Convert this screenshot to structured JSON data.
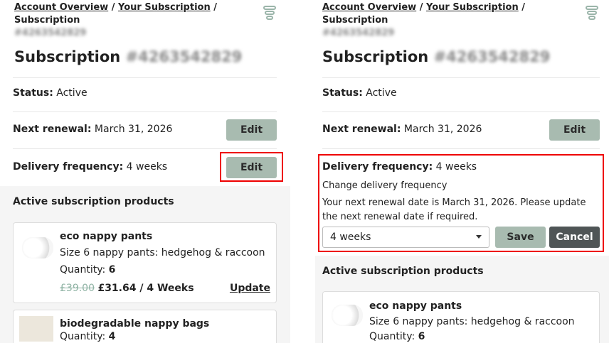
{
  "breadcrumb": {
    "items": [
      "Account Overview",
      "Your Subscription"
    ],
    "current": "Subscription",
    "sub_id": "#4263542829"
  },
  "title": {
    "label": "Subscription",
    "id": "#4263542829"
  },
  "status": {
    "label": "Status:",
    "value": "Active"
  },
  "renewal": {
    "label": "Next renewal:",
    "value": "March 31, 2026",
    "edit": "Edit"
  },
  "frequency": {
    "label": "Delivery frequency:",
    "value": "4 weeks",
    "edit": "Edit",
    "change_title": "Change delivery frequency",
    "note": "Your next renewal date is March 31, 2026. Please update the next renewal date if required.",
    "selected": "4 weeks",
    "save": "Save",
    "cancel": "Cancel"
  },
  "products": {
    "heading": "Active subscription products",
    "items": [
      {
        "name": "eco nappy pants",
        "variant": "Size 6 nappy pants: hedgehog & raccoon",
        "qty_label": "Quantity:",
        "qty": "6",
        "old_price": "£39.00",
        "price": "£31.64 / 4 Weeks",
        "update": "Update"
      },
      {
        "name": "biodegradable nappy bags",
        "qty_label": "Quantity:",
        "qty": "4"
      }
    ]
  },
  "colors": {
    "accent": "#a8bbb0",
    "highlight": "#e00000",
    "dark_button": "#4f5556"
  }
}
